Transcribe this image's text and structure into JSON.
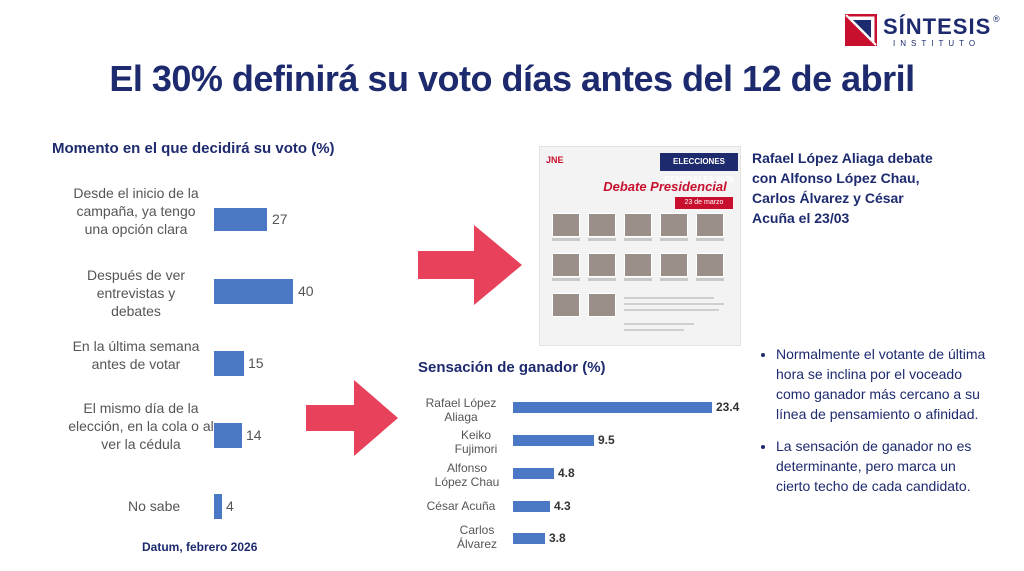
{
  "logo": {
    "name": "SÍNTESIS",
    "subtitle": "INSTITUTO",
    "mark": "®"
  },
  "title": "El 30% definirá su voto días antes del 12 de abril",
  "left_chart_title": "Momento en el que decidirá su voto (%)",
  "right_chart_title": "Sensación de ganador (%)",
  "source": "Datum, febrero 2026",
  "debate_note": "Rafael López Aliaga debate con Alfonso López Chau, Carlos Álvarez y César Acuña el 23/03",
  "poster": {
    "tag": "ELECCIONES GENERALES 2026",
    "org": "JNE",
    "title": "Debate Presidencial",
    "date": "23 de marzo"
  },
  "bullets": [
    "Normalmente el votante de última hora se inclina por el voceado como ganador más cercano a su línea de pensamiento o afinidad.",
    "La sensación de ganador no es determinante, pero marca un cierto techo de cada candidato."
  ],
  "colors": {
    "bar": "#4a78c4",
    "arrow": "#e8415c",
    "title": "#1d2a6e",
    "logo_red": "#c8102e"
  },
  "chart_data": [
    {
      "type": "bar",
      "orientation": "horizontal",
      "title": "Momento en el que decidirá su voto (%)",
      "categories": [
        "Desde el inicio de la campaña, ya tengo una opción clara",
        "Después de ver entrevistas y debates",
        "En la última semana antes de votar",
        "El mismo día de la elección, en la cola o al ver la cédula",
        "No sabe"
      ],
      "values": [
        27,
        40,
        15,
        14,
        4
      ],
      "xlim": [
        0,
        40
      ]
    },
    {
      "type": "bar",
      "orientation": "horizontal",
      "title": "Sensación de ganador (%)",
      "categories": [
        "Rafael López Aliaga",
        "Keiko Fujimori",
        "Alfonso López Chau",
        "César Acuña",
        "Carlos Álvarez"
      ],
      "values": [
        23.4,
        9.5,
        4.8,
        4.3,
        3.8
      ],
      "labels": [
        "23.4",
        "9.5",
        "4.8",
        "4.3",
        "3.8"
      ],
      "xlim": [
        0,
        23.4
      ]
    }
  ]
}
